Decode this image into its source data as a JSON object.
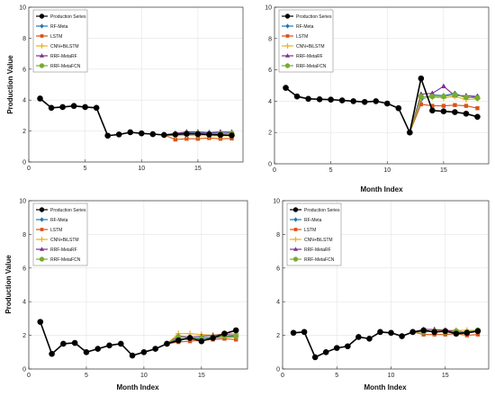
{
  "chart_data": [
    {
      "type": "line",
      "xlabel": "",
      "ylabel": "Production Value",
      "xlim": [
        0,
        19
      ],
      "ylim": [
        0,
        10
      ],
      "xticks": [
        "0",
        "5",
        "10",
        "15"
      ],
      "yticks": [
        "0",
        "2",
        "4",
        "6",
        "8",
        "10"
      ],
      "legend_position": "top-left",
      "series": [
        {
          "name": "Production Series",
          "color": "#000000",
          "marker": "circle",
          "x": [
            1,
            2,
            3,
            4,
            5,
            6,
            7,
            8,
            9,
            10,
            11,
            12,
            13,
            14,
            15,
            16,
            17,
            18
          ],
          "y": [
            4.1,
            3.5,
            3.55,
            3.62,
            3.55,
            3.5,
            1.7,
            1.78,
            1.92,
            1.85,
            1.8,
            1.75,
            1.78,
            1.82,
            1.8,
            1.78,
            1.75,
            1.72
          ]
        },
        {
          "name": "RF-Meta",
          "color": "#1f77b4",
          "marker": "diamond",
          "x": [
            12,
            13,
            14,
            15,
            16,
            17,
            18
          ],
          "y": [
            1.75,
            1.85,
            1.9,
            1.88,
            1.9,
            1.85,
            1.88
          ]
        },
        {
          "name": "LSTM",
          "color": "#d95319",
          "marker": "square",
          "x": [
            12,
            13,
            14,
            15,
            16,
            17,
            18
          ],
          "y": [
            1.75,
            1.45,
            1.5,
            1.5,
            1.55,
            1.5,
            1.52
          ]
        },
        {
          "name": "CNN+BiLSTM",
          "color": "#edb120",
          "marker": "plus",
          "x": [
            12,
            13,
            14,
            15,
            16,
            17,
            18
          ],
          "y": [
            1.75,
            1.7,
            1.72,
            1.7,
            1.7,
            1.68,
            1.7
          ]
        },
        {
          "name": "RRF-MetaRF",
          "color": "#7e2f8e",
          "marker": "triangle",
          "x": [
            12,
            13,
            14,
            15,
            16,
            17,
            18
          ],
          "y": [
            1.75,
            1.85,
            1.95,
            1.95,
            1.9,
            1.95,
            1.93
          ]
        },
        {
          "name": "RRF-MetaFCN",
          "color": "#77ac30",
          "marker": "circle",
          "x": [
            12,
            13,
            14,
            15,
            16,
            17,
            18
          ],
          "y": [
            1.75,
            1.8,
            1.85,
            1.85,
            1.8,
            1.82,
            1.85
          ]
        }
      ]
    },
    {
      "type": "line",
      "xlabel": "Month Index",
      "ylabel": "",
      "xlim": [
        0,
        19
      ],
      "ylim": [
        0,
        10
      ],
      "xticks": [
        "0",
        "5",
        "10",
        "15"
      ],
      "yticks": [
        "0",
        "2",
        "4",
        "6",
        "8",
        "10"
      ],
      "legend_position": "top-left",
      "series": [
        {
          "name": "Production Series",
          "color": "#000000",
          "marker": "circle",
          "x": [
            1,
            2,
            3,
            4,
            5,
            6,
            7,
            8,
            9,
            10,
            11,
            12,
            13,
            14,
            15,
            16,
            17,
            18
          ],
          "y": [
            4.85,
            4.3,
            4.15,
            4.12,
            4.1,
            4.05,
            4.0,
            3.95,
            4.0,
            3.85,
            3.55,
            2.0,
            5.45,
            3.4,
            3.35,
            3.3,
            3.2,
            3.0
          ]
        },
        {
          "name": "RF-Meta",
          "color": "#1f77b4",
          "marker": "diamond",
          "x": [
            12,
            13,
            14,
            15,
            16,
            17,
            18
          ],
          "y": [
            2.0,
            4.1,
            4.4,
            4.35,
            4.5,
            4.2,
            4.3
          ]
        },
        {
          "name": "LSTM",
          "color": "#d95319",
          "marker": "square",
          "x": [
            12,
            13,
            14,
            15,
            16,
            17,
            18
          ],
          "y": [
            2.0,
            3.8,
            3.7,
            3.7,
            3.75,
            3.7,
            3.55
          ]
        },
        {
          "name": "CNN+BiLSTM",
          "color": "#edb120",
          "marker": "plus",
          "x": [
            12,
            13,
            14,
            15,
            16,
            17,
            18
          ],
          "y": [
            2.0,
            4.2,
            4.25,
            4.2,
            4.3,
            4.1,
            4.15
          ]
        },
        {
          "name": "RRF-MetaRF",
          "color": "#7e2f8e",
          "marker": "triangle",
          "x": [
            12,
            13,
            14,
            15,
            16,
            17,
            18
          ],
          "y": [
            2.0,
            4.45,
            4.5,
            4.95,
            4.35,
            4.35,
            4.3
          ]
        },
        {
          "name": "RRF-MetaFCN",
          "color": "#77ac30",
          "marker": "circle",
          "x": [
            12,
            13,
            14,
            15,
            16,
            17,
            18
          ],
          "y": [
            2.0,
            4.3,
            4.3,
            4.3,
            4.4,
            4.25,
            4.2
          ]
        }
      ]
    },
    {
      "type": "line",
      "xlabel": "Month Index",
      "ylabel": "Production Value",
      "xlim": [
        0,
        19
      ],
      "ylim": [
        0,
        10
      ],
      "xticks": [
        "0",
        "5",
        "10",
        "15"
      ],
      "yticks": [
        "0",
        "2",
        "4",
        "6",
        "8",
        "10"
      ],
      "legend_position": "top-left",
      "series": [
        {
          "name": "Production Series",
          "color": "#000000",
          "marker": "circle",
          "x": [
            1,
            2,
            3,
            4,
            5,
            6,
            7,
            8,
            9,
            10,
            11,
            12,
            13,
            14,
            15,
            16,
            17,
            18
          ],
          "y": [
            2.8,
            0.9,
            1.5,
            1.55,
            1.0,
            1.2,
            1.4,
            1.5,
            0.8,
            1.0,
            1.2,
            1.5,
            1.7,
            1.85,
            1.65,
            1.85,
            2.1,
            2.3
          ]
        },
        {
          "name": "RF-Meta",
          "color": "#1f77b4",
          "marker": "diamond",
          "x": [
            12,
            13,
            14,
            15,
            16,
            17,
            18
          ],
          "y": [
            1.5,
            1.8,
            1.75,
            1.8,
            1.85,
            1.9,
            1.9
          ]
        },
        {
          "name": "LSTM",
          "color": "#d95319",
          "marker": "square",
          "x": [
            12,
            13,
            14,
            15,
            16,
            17,
            18
          ],
          "y": [
            1.5,
            1.6,
            1.65,
            1.7,
            1.75,
            1.8,
            1.75
          ]
        },
        {
          "name": "CNN+BiLSTM",
          "color": "#edb120",
          "marker": "plus",
          "x": [
            12,
            13,
            14,
            15,
            16,
            17,
            18
          ],
          "y": [
            1.5,
            2.1,
            2.1,
            2.05,
            2.0,
            2.1,
            2.1
          ]
        },
        {
          "name": "RRF-MetaRF",
          "color": "#7e2f8e",
          "marker": "triangle",
          "x": [
            12,
            13,
            14,
            15,
            16,
            17,
            18
          ],
          "y": [
            1.5,
            1.95,
            1.9,
            1.95,
            2.0,
            2.05,
            2.0
          ]
        },
        {
          "name": "RRF-MetaFCN",
          "color": "#77ac30",
          "marker": "circle",
          "x": [
            12,
            13,
            14,
            15,
            16,
            17,
            18
          ],
          "y": [
            1.5,
            1.9,
            1.85,
            1.85,
            1.9,
            1.95,
            1.95
          ]
        }
      ]
    },
    {
      "type": "line",
      "xlabel": "Month Index",
      "ylabel": "",
      "xlim": [
        0,
        19
      ],
      "ylim": [
        0,
        10
      ],
      "xticks": [
        "0",
        "5",
        "10",
        "15"
      ],
      "yticks": [
        "0",
        "2",
        "4",
        "6",
        "8",
        "10"
      ],
      "legend_position": "top-left",
      "series": [
        {
          "name": "Production Series",
          "color": "#000000",
          "marker": "circle",
          "x": [
            1,
            2,
            3,
            4,
            5,
            6,
            7,
            8,
            9,
            10,
            11,
            12,
            13,
            14,
            15,
            16,
            17,
            18
          ],
          "y": [
            2.15,
            2.2,
            0.7,
            1.0,
            1.25,
            1.35,
            1.9,
            1.8,
            2.2,
            2.15,
            1.95,
            2.2,
            2.3,
            2.2,
            2.25,
            2.1,
            2.15,
            2.25
          ]
        },
        {
          "name": "RF-Meta",
          "color": "#1f77b4",
          "marker": "diamond",
          "x": [
            12,
            13,
            14,
            15,
            16,
            17,
            18
          ],
          "y": [
            2.2,
            2.3,
            2.2,
            2.25,
            2.2,
            2.15,
            2.25
          ]
        },
        {
          "name": "LSTM",
          "color": "#d95319",
          "marker": "square",
          "x": [
            12,
            13,
            14,
            15,
            16,
            17,
            18
          ],
          "y": [
            2.2,
            2.05,
            2.05,
            2.05,
            2.1,
            2.0,
            2.05
          ]
        },
        {
          "name": "CNN+BiLSTM",
          "color": "#edb120",
          "marker": "plus",
          "x": [
            12,
            13,
            14,
            15,
            16,
            17,
            18
          ],
          "y": [
            2.2,
            2.25,
            2.25,
            2.3,
            2.3,
            2.3,
            2.3
          ]
        },
        {
          "name": "RRF-MetaRF",
          "color": "#7e2f8e",
          "marker": "triangle",
          "x": [
            12,
            13,
            14,
            15,
            16,
            17,
            18
          ],
          "y": [
            2.2,
            2.35,
            2.35,
            2.3,
            2.25,
            2.2,
            2.3
          ]
        },
        {
          "name": "RRF-MetaFCN",
          "color": "#77ac30",
          "marker": "circle",
          "x": [
            12,
            13,
            14,
            15,
            16,
            17,
            18
          ],
          "y": [
            2.2,
            2.2,
            2.25,
            2.2,
            2.25,
            2.2,
            2.3
          ]
        }
      ]
    }
  ]
}
